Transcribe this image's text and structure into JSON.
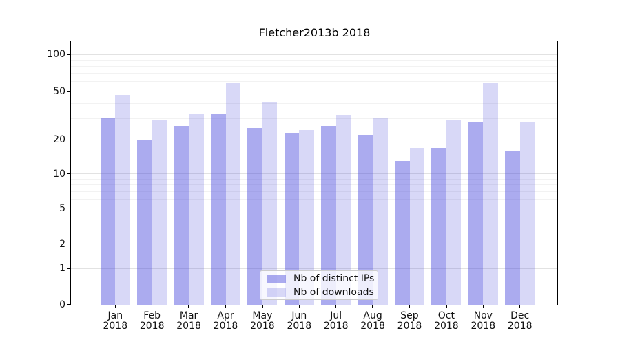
{
  "chart_data": {
    "type": "bar",
    "title": "Fletcher2013b 2018",
    "categories": [
      "Jan",
      "Feb",
      "Mar",
      "Apr",
      "May",
      "Jun",
      "Jul",
      "Aug",
      "Sep",
      "Oct",
      "Nov",
      "Dec"
    ],
    "x_tick_year": "2018",
    "series": [
      {
        "name": "Nb of distinct IPs",
        "color": "#4545db",
        "alpha": 0.45,
        "values": [
          30,
          20,
          26,
          33,
          25,
          23,
          26,
          22,
          13,
          17,
          28,
          16
        ]
      },
      {
        "name": "Nb of downloads",
        "color": "#4545db",
        "alpha": 0.21,
        "values": [
          47,
          29,
          33,
          59,
          41,
          24,
          32,
          30,
          17,
          29,
          58,
          28
        ]
      }
    ],
    "xlabel": "",
    "ylabel": "",
    "yscale": "symlog",
    "y_ticks": [
      100,
      50,
      20,
      10,
      5,
      2,
      1,
      0
    ],
    "minor_gridlines": [
      3,
      4,
      6,
      7,
      8,
      9,
      30,
      40,
      60,
      70,
      80,
      90
    ],
    "ylim": [
      0,
      130
    ],
    "grid": true,
    "legend_position": "lower center"
  },
  "colors": {
    "major_grid": "#e2e2e2",
    "minor_grid": "#f2f2f2",
    "spine": "#000000",
    "legend_border": "#cccccc",
    "background": "#ffffff"
  }
}
